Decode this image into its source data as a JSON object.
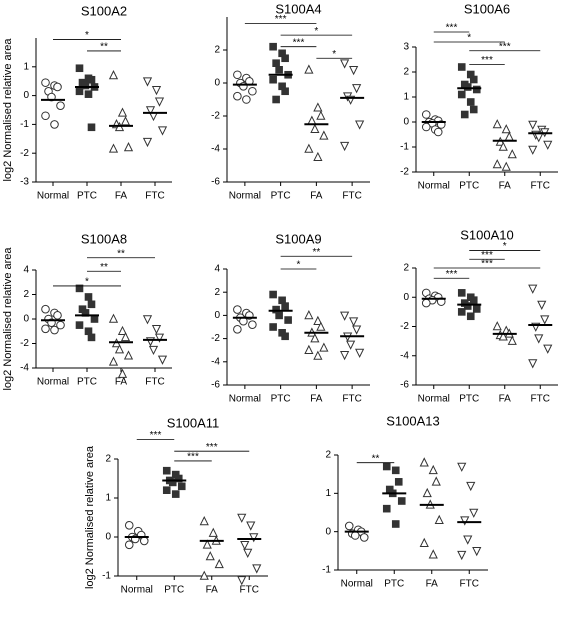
{
  "chart_data": [
    {
      "type": "dotplot",
      "title": "S100A2",
      "ylabel": "log2 Normalised relative area",
      "categories": [
        "Normal",
        "PTC",
        "FA",
        "FTC"
      ],
      "markers": [
        "circle",
        "square",
        "triangle-up",
        "triangle-down"
      ],
      "color": "#333333",
      "ylim": [
        -3,
        2
      ],
      "yticks": [
        -3,
        -2,
        -1,
        0,
        1
      ],
      "groups": [
        [
          0.45,
          0.35,
          0.3,
          0.15,
          -0.05,
          -0.35,
          -0.7,
          -1.0
        ],
        [
          0.95,
          0.6,
          0.55,
          0.45,
          0.35,
          0.3,
          0.15,
          0.05,
          -1.1
        ],
        [
          0.7,
          -0.6,
          -0.9,
          -1.0,
          -1.1,
          -1.8,
          -1.85
        ],
        [
          0.5,
          0.2,
          -0.2,
          -0.5,
          -0.7,
          -1.2,
          -1.6
        ]
      ],
      "medians": [
        -0.15,
        0.3,
        -1.05,
        -0.6
      ],
      "brackets": [
        {
          "from": 0,
          "to": 2,
          "y": 1.95,
          "label": "*"
        },
        {
          "from": 1,
          "to": 2,
          "y": 1.55,
          "label": "**"
        }
      ]
    },
    {
      "type": "dotplot",
      "title": "S100A4",
      "categories": [
        "Normal",
        "PTC",
        "FA",
        "FTC"
      ],
      "markers": [
        "circle",
        "square",
        "triangle-up",
        "triangle-down"
      ],
      "color": "#333333",
      "ylim": [
        -6,
        4
      ],
      "yticks": [
        -6,
        -4,
        -2,
        0,
        2
      ],
      "groups": [
        [
          0.5,
          0.3,
          0.1,
          0,
          -0.2,
          -0.5,
          -0.8,
          -1.0
        ],
        [
          2.2,
          1.8,
          1.5,
          1.2,
          0.8,
          0.5,
          0.2,
          -0.2,
          -0.5,
          -1.0
        ],
        [
          0.8,
          -1.5,
          -2.0,
          -2.3,
          -2.8,
          -3.2,
          -4.0,
          -4.5
        ],
        [
          1.2,
          0.8,
          -0.3,
          -0.8,
          -1.0,
          -2.5,
          -3.8
        ]
      ],
      "medians": [
        -0.1,
        0.5,
        -2.5,
        -0.9
      ],
      "brackets": [
        {
          "from": 0,
          "to": 2,
          "y": 3.6,
          "label": "***"
        },
        {
          "from": 1,
          "to": 3,
          "y": 2.9,
          "label": "*"
        },
        {
          "from": 1,
          "to": 2,
          "y": 2.2,
          "label": "***"
        },
        {
          "from": 2,
          "to": 3,
          "y": 1.5,
          "label": "*"
        }
      ]
    },
    {
      "type": "dotplot",
      "title": "S100A6",
      "categories": [
        "Normal",
        "PTC",
        "FA",
        "FTC"
      ],
      "markers": [
        "circle",
        "square",
        "triangle-up",
        "triangle-down"
      ],
      "color": "#333333",
      "ylim": [
        -2,
        3
      ],
      "yticks": [
        -2,
        -1,
        0,
        1,
        2,
        3
      ],
      "groups": [
        [
          0.3,
          0.1,
          0.05,
          0,
          -0.05,
          -0.1,
          -0.2,
          -0.3,
          -0.4
        ],
        [
          2.2,
          1.9,
          1.7,
          1.5,
          1.4,
          1.3,
          1.1,
          0.8,
          0.5,
          0.3
        ],
        [
          -0.1,
          -0.3,
          -0.6,
          -0.8,
          -1.0,
          -1.3,
          -1.7,
          -1.8
        ],
        [
          -0.1,
          -0.3,
          -0.4,
          -0.5,
          -0.6,
          -0.9,
          -1.1
        ]
      ],
      "medians": [
        0,
        1.35,
        -0.75,
        -0.45
      ],
      "brackets": [
        {
          "from": 0,
          "to": 1,
          "y": 3.6,
          "label": "***"
        },
        {
          "from": 0,
          "to": 2,
          "y": 3.2,
          "label": "*"
        },
        {
          "from": 1,
          "to": 3,
          "y": 2.85,
          "label": "***"
        },
        {
          "from": 1,
          "to": 2,
          "y": 2.3,
          "label": "***"
        }
      ]
    },
    {
      "type": "dotplot",
      "title": "S100A8",
      "ylabel": "log2 Normalised relative area",
      "categories": [
        "Normal",
        "PTC",
        "FA",
        "FTC"
      ],
      "markers": [
        "circle",
        "square",
        "triangle-up",
        "triangle-down"
      ],
      "color": "#333333",
      "ylim": [
        -4,
        4
      ],
      "yticks": [
        -4,
        -2,
        0,
        2,
        4
      ],
      "groups": [
        [
          0.8,
          0.5,
          0.3,
          0,
          -0.3,
          -0.5,
          -0.8,
          -0.9
        ],
        [
          2.5,
          1.8,
          1.2,
          0.8,
          0.5,
          0,
          -0.5,
          -1.0,
          -1.5
        ],
        [
          0,
          -1.0,
          -1.5,
          -2.0,
          -2.5,
          -3.0,
          -3.5,
          -4.5
        ],
        [
          0,
          -0.8,
          -1.5,
          -1.8,
          -2.5,
          -3.3
        ]
      ],
      "medians": [
        -0.1,
        0.3,
        -1.9,
        -1.7
      ],
      "brackets": [
        {
          "from": 1,
          "to": 3,
          "y": 5.0,
          "label": "**"
        },
        {
          "from": 1,
          "to": 2,
          "y": 3.9,
          "label": "**"
        },
        {
          "from": 0,
          "to": 2,
          "y": 2.7,
          "label": "*"
        }
      ]
    },
    {
      "type": "dotplot",
      "title": "S100A9",
      "categories": [
        "Normal",
        "PTC",
        "FA",
        "FTC"
      ],
      "markers": [
        "circle",
        "square",
        "triangle-up",
        "triangle-down"
      ],
      "color": "#333333",
      "ylim": [
        -6,
        4
      ],
      "yticks": [
        -6,
        -4,
        -2,
        0,
        2,
        4
      ],
      "groups": [
        [
          0.5,
          0.2,
          0,
          -0.2,
          -0.5,
          -0.8,
          -1.2
        ],
        [
          1.8,
          1.3,
          0.8,
          0.5,
          0,
          -0.4,
          -1.0,
          -1.5,
          -1.8
        ],
        [
          0,
          -0.5,
          -1.0,
          -1.5,
          -2.0,
          -2.8,
          -3.0,
          -3.5
        ],
        [
          0,
          -0.5,
          -1.2,
          -1.8,
          -2.5,
          -3.2,
          -3.4
        ]
      ],
      "medians": [
        -0.2,
        0.4,
        -1.5,
        -1.8
      ],
      "brackets": [
        {
          "from": 1,
          "to": 3,
          "y": 5.1,
          "label": "**"
        },
        {
          "from": 1,
          "to": 2,
          "y": 4.0,
          "label": "*"
        }
      ]
    },
    {
      "type": "dotplot",
      "title": "S100A10",
      "categories": [
        "Normal",
        "PTC",
        "FA",
        "FTC"
      ],
      "markers": [
        "circle",
        "square",
        "triangle-up",
        "triangle-down"
      ],
      "color": "#333333",
      "ylim": [
        -6,
        2
      ],
      "yticks": [
        -6,
        -4,
        -2,
        0,
        2
      ],
      "groups": [
        [
          0.3,
          0.1,
          0,
          -0.1,
          -0.2,
          -0.3,
          -0.4
        ],
        [
          0.3,
          0,
          -0.2,
          -0.4,
          -0.6,
          -0.8,
          -1.0,
          -1.3
        ],
        [
          -2.0,
          -2.3,
          -2.5,
          -2.6,
          -2.7,
          -3.0
        ],
        [
          0.6,
          -0.5,
          -1.5,
          -2.0,
          -2.8,
          -3.5,
          -4.5
        ]
      ],
      "medians": [
        -0.1,
        -0.5,
        -2.5,
        -1.9
      ],
      "brackets": [
        {
          "from": 1,
          "to": 3,
          "y": 3.2,
          "label": "*"
        },
        {
          "from": 1,
          "to": 2,
          "y": 2.6,
          "label": "***"
        },
        {
          "from": 0,
          "to": 3,
          "y": 2.0,
          "label": "***"
        },
        {
          "from": 0,
          "to": 1,
          "y": 1.3,
          "label": "***"
        }
      ]
    },
    {
      "type": "dotplot",
      "title": "S100A11",
      "ylabel": "log2 Normalised relative area",
      "categories": [
        "Normal",
        "PTC",
        "FA",
        "FTC"
      ],
      "markers": [
        "circle",
        "square",
        "triangle-up",
        "triangle-down"
      ],
      "color": "#333333",
      "ylim": [
        -1,
        2
      ],
      "yticks": [
        -1,
        0,
        1,
        2
      ],
      "groups": [
        [
          0.3,
          0.15,
          0.05,
          0,
          -0.05,
          -0.1,
          -0.2
        ],
        [
          1.7,
          1.6,
          1.5,
          1.45,
          1.4,
          1.3,
          1.2,
          1.1
        ],
        [
          0.4,
          0.1,
          -0.1,
          -0.2,
          -0.5,
          -0.7,
          -1.0
        ],
        [
          0.5,
          0.3,
          0,
          -0.2,
          -0.4,
          -0.8,
          -1.1
        ]
      ],
      "medians": [
        0,
        1.45,
        -0.1,
        -0.05
      ],
      "brackets": [
        {
          "from": 0,
          "to": 1,
          "y": 2.5,
          "label": "***"
        },
        {
          "from": 1,
          "to": 3,
          "y": 2.2,
          "label": "***"
        },
        {
          "from": 1,
          "to": 2,
          "y": 1.95,
          "label": "***"
        }
      ]
    },
    {
      "type": "dotplot",
      "title": "S100A13",
      "categories": [
        "Normal",
        "PTC",
        "FA",
        "FTC"
      ],
      "markers": [
        "circle",
        "square",
        "triangle-up",
        "triangle-down"
      ],
      "color": "#333333",
      "ylim": [
        -1,
        2
      ],
      "yticks": [
        -1,
        0,
        1,
        2
      ],
      "groups": [
        [
          0.15,
          0.05,
          0,
          -0.05,
          -0.1,
          -0.15
        ],
        [
          1.7,
          1.6,
          1.3,
          1.1,
          1.0,
          0.8,
          0.6,
          0.2
        ],
        [
          1.8,
          1.6,
          1.3,
          1.0,
          0.7,
          0.3,
          -0.3,
          -0.6
        ],
        [
          1.7,
          1.2,
          0.5,
          0.3,
          -0.2,
          -0.5,
          -0.6
        ]
      ],
      "medians": [
        0,
        1.0,
        0.7,
        0.25
      ],
      "brackets": [
        {
          "from": 0,
          "to": 1,
          "y": 1.8,
          "label": "**"
        }
      ]
    }
  ]
}
